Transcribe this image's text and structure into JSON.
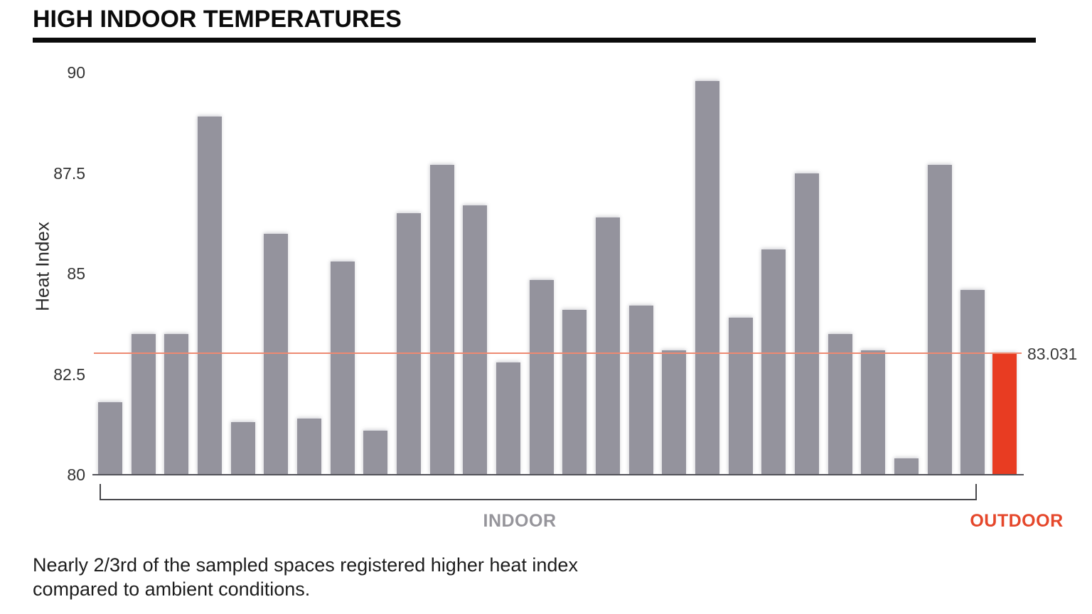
{
  "header": {
    "title": "HIGH INDOOR TEMPERATURES"
  },
  "chart_data": {
    "type": "bar",
    "title": "HIGH INDOOR TEMPERATURES",
    "ylabel": "Heat Index",
    "ylim": [
      80,
      90
    ],
    "ytick_values": [
      80,
      82.5,
      85,
      87.5,
      90
    ],
    "ytick_labels": [
      "80",
      "82.5",
      "85",
      "87.5",
      "90"
    ],
    "grid": false,
    "legend_position": "below-axis-group-brackets",
    "series": [
      {
        "name": "INDOOR",
        "color": "#94939D",
        "values": [
          81.8,
          83.5,
          83.5,
          88.9,
          81.3,
          86.0,
          81.4,
          85.3,
          81.1,
          86.5,
          87.7,
          86.7,
          82.8,
          84.85,
          84.1,
          86.4,
          84.2,
          83.1,
          89.8,
          83.9,
          85.6,
          87.5,
          83.5,
          83.1,
          80.4,
          87.7,
          84.6
        ]
      },
      {
        "name": "OUTDOOR",
        "color": "#E83C22",
        "values": [
          83.031
        ]
      }
    ],
    "reference_line": {
      "value": 83.031,
      "label": "83.031",
      "color": "#ED8A72"
    }
  },
  "group_labels": {
    "indoor": "INDOOR",
    "outdoor": "OUTDOOR"
  },
  "caption": {
    "line1": "Nearly 2/3rd of the sampled spaces registered higher heat index",
    "line2": "compared to ambient conditions."
  },
  "colors": {
    "indoor_bar": "#94939D",
    "outdoor_bar": "#E83C22",
    "reference_line": "#ED8A72",
    "indoor_label": "#96959B",
    "outdoor_label": "#E5472B",
    "axis_line": "#53535A",
    "bracket": "#47474B",
    "title_rule": "#0B0B0B"
  }
}
